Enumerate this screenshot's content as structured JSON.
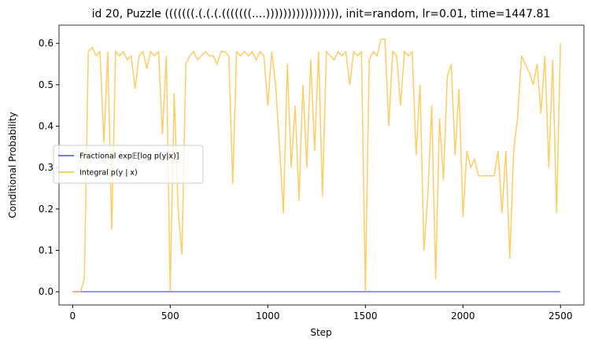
{
  "chart_data": {
    "type": "line",
    "title": "id 20, Puzzle (((((((.(.(.(.(((((((....))))))))))))))))), init=random, lr=0.01, time=1447.81",
    "xlabel": "Step",
    "ylabel": "Conditional Probability",
    "x": [
      0,
      20,
      40,
      60,
      80,
      100,
      120,
      140,
      160,
      180,
      200,
      220,
      240,
      260,
      280,
      300,
      320,
      340,
      360,
      380,
      400,
      420,
      440,
      460,
      480,
      500,
      520,
      540,
      560,
      580,
      600,
      620,
      640,
      660,
      680,
      700,
      720,
      740,
      760,
      780,
      800,
      820,
      840,
      860,
      880,
      900,
      920,
      940,
      960,
      980,
      1000,
      1020,
      1040,
      1060,
      1080,
      1100,
      1120,
      1140,
      1160,
      1180,
      1200,
      1220,
      1240,
      1260,
      1280,
      1300,
      1320,
      1340,
      1360,
      1380,
      1400,
      1420,
      1440,
      1460,
      1480,
      1500,
      1520,
      1540,
      1560,
      1580,
      1600,
      1620,
      1640,
      1660,
      1680,
      1700,
      1720,
      1740,
      1760,
      1780,
      1800,
      1820,
      1840,
      1860,
      1880,
      1900,
      1920,
      1940,
      1960,
      1980,
      2000,
      2020,
      2040,
      2060,
      2080,
      2100,
      2120,
      2140,
      2160,
      2180,
      2200,
      2220,
      2240,
      2260,
      2280,
      2300,
      2320,
      2340,
      2360,
      2380,
      2400,
      2420,
      2440,
      2460,
      2480,
      2500
    ],
    "series": [
      {
        "name": "Fractional exp𝔼[log p(y|x)]",
        "color": "#4c4cf0",
        "values": [
          0,
          0,
          0,
          0,
          0,
          0,
          0,
          0,
          0,
          0,
          0,
          0,
          0,
          0,
          0,
          0,
          0,
          0,
          0,
          0,
          0,
          0,
          0,
          0,
          0,
          0,
          0,
          0,
          0,
          0,
          0,
          0,
          0,
          0,
          0,
          0,
          0,
          0,
          0,
          0,
          0,
          0,
          0,
          0,
          0,
          0,
          0,
          0,
          0,
          0,
          0,
          0,
          0,
          0,
          0,
          0,
          0,
          0,
          0,
          0,
          0,
          0,
          0,
          0,
          0,
          0,
          0,
          0,
          0,
          0,
          0,
          0,
          0,
          0,
          0,
          0,
          0,
          0,
          0,
          0,
          0,
          0,
          0,
          0,
          0,
          0,
          0,
          0,
          0,
          0,
          0,
          0,
          0,
          0,
          0,
          0,
          0,
          0,
          0,
          0,
          0,
          0,
          0,
          0,
          0,
          0,
          0,
          0,
          0,
          0,
          0,
          0,
          0,
          0,
          0,
          0,
          0,
          0,
          0,
          0,
          0,
          0,
          0,
          0,
          0,
          0
        ]
      },
      {
        "name": "Integral p(y | x)",
        "color": "#ffbf40",
        "values": [
          0,
          0,
          0,
          0.03,
          0.58,
          0.59,
          0.57,
          0.58,
          0.36,
          0.58,
          0.15,
          0.58,
          0.57,
          0.58,
          0.56,
          0.57,
          0.49,
          0.57,
          0.58,
          0.54,
          0.58,
          0.57,
          0.58,
          0.38,
          0.57,
          0,
          0.48,
          0.2,
          0.09,
          0.55,
          0.57,
          0.58,
          0.56,
          0.57,
          0.58,
          0.57,
          0.57,
          0.55,
          0.58,
          0.58,
          0.57,
          0.26,
          0.58,
          0.57,
          0.58,
          0.57,
          0.58,
          0.56,
          0.58,
          0.57,
          0.45,
          0.58,
          0.5,
          0.35,
          0.19,
          0.55,
          0.3,
          0.45,
          0.22,
          0.5,
          0.3,
          0.56,
          0.34,
          0.58,
          0.23,
          0.58,
          0.57,
          0.56,
          0.58,
          0.57,
          0.58,
          0.5,
          0.58,
          0.57,
          0.58,
          0,
          0.56,
          0.58,
          0.57,
          0.61,
          0.61,
          0.4,
          0.58,
          0.57,
          0.45,
          0.58,
          0.57,
          0.58,
          0.33,
          0.5,
          0.1,
          0.23,
          0.45,
          0.03,
          0.42,
          0.27,
          0.52,
          0.55,
          0.33,
          0.49,
          0.18,
          0.34,
          0.3,
          0.32,
          0.28,
          0.28,
          0.28,
          0.28,
          0.28,
          0.34,
          0.19,
          0.34,
          0.08,
          0.34,
          0.42,
          0.57,
          0.55,
          0.53,
          0.5,
          0.55,
          0.43,
          0.57,
          0.3,
          0.56,
          0.19,
          0.6
        ]
      }
    ],
    "xlim": [
      -70,
      2620
    ],
    "xticks": [
      0,
      500,
      1000,
      1500,
      2000,
      2500
    ],
    "ylim": [
      -0.032,
      0.644
    ],
    "yticks": [
      {
        "value": 0,
        "label": "0.0"
      },
      0.1,
      0.2,
      0.3,
      0.4,
      0.5,
      0.6
    ],
    "legend": "center left"
  }
}
